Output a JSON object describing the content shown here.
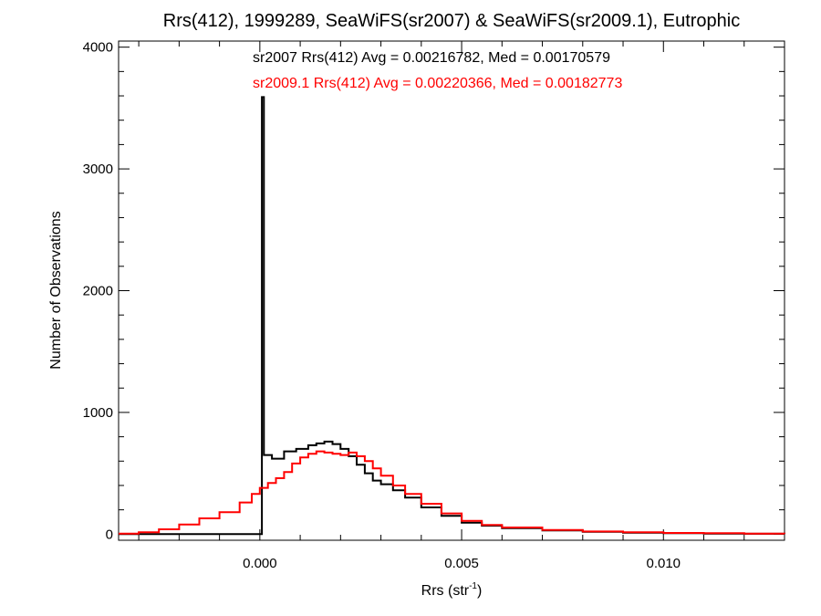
{
  "chart_data": {
    "type": "line",
    "title": "Rrs(412), 1999289, SeaWiFS(sr2007) & SeaWiFS(sr2009.1), Eutrophic",
    "xlabel": "Rrs (str",
    "xlabel_sup": "-1",
    "xlabel_close": ")",
    "ylabel": "Number of Observations",
    "xlim": [
      -0.0035,
      0.013
    ],
    "ylim": [
      -50,
      4050
    ],
    "x_ticks": [
      0.0,
      0.005,
      0.01
    ],
    "x_tick_labels": [
      "0.000",
      "0.005",
      "0.010"
    ],
    "y_ticks": [
      0,
      1000,
      2000,
      3000,
      4000
    ],
    "y_tick_labels": [
      "0",
      "1000",
      "2000",
      "3000",
      "4000"
    ],
    "grid": false,
    "annotations": [
      {
        "text": "sr2007 Rrs(412) Avg = 0.00216782, Med = 0.00170579",
        "color": "#000000"
      },
      {
        "text": "sr2009.1 Rrs(412) Avg = 0.00220366, Med = 0.00182773",
        "color": "#ff0000"
      }
    ],
    "series": [
      {
        "color": "#000000",
        "x": [
          -0.0035,
          -0.0001,
          0.0,
          5e-05,
          0.0001,
          0.0003,
          0.0006,
          0.0009,
          0.0012,
          0.0014,
          0.0016,
          0.0018,
          0.002,
          0.0022,
          0.0024,
          0.0026,
          0.0028,
          0.003,
          0.0033,
          0.0036,
          0.004,
          0.0045,
          0.005,
          0.0055,
          0.006,
          0.007,
          0.008,
          0.009,
          0.01,
          0.011,
          0.012,
          0.013
        ],
        "y": [
          0,
          0,
          0,
          3590,
          650,
          620,
          680,
          700,
          730,
          745,
          760,
          740,
          700,
          640,
          570,
          500,
          440,
          410,
          360,
          300,
          220,
          150,
          95,
          70,
          50,
          30,
          20,
          12,
          8,
          5,
          3,
          2
        ]
      },
      {
        "color": "#ff0000",
        "x": [
          -0.0035,
          -0.003,
          -0.0025,
          -0.002,
          -0.0015,
          -0.001,
          -0.0005,
          -0.0002,
          0.0,
          0.0002,
          0.0004,
          0.0006,
          0.0008,
          0.001,
          0.0012,
          0.0014,
          0.0016,
          0.0018,
          0.002,
          0.0022,
          0.0024,
          0.0026,
          0.0028,
          0.003,
          0.0033,
          0.0036,
          0.004,
          0.0045,
          0.005,
          0.0055,
          0.006,
          0.007,
          0.008,
          0.009,
          0.01,
          0.011,
          0.012,
          0.013
        ],
        "y": [
          5,
          15,
          40,
          80,
          130,
          180,
          260,
          330,
          380,
          420,
          460,
          510,
          580,
          630,
          660,
          680,
          670,
          660,
          650,
          670,
          640,
          600,
          540,
          480,
          400,
          330,
          250,
          170,
          110,
          75,
          55,
          35,
          22,
          15,
          10,
          8,
          5,
          3
        ]
      }
    ]
  }
}
